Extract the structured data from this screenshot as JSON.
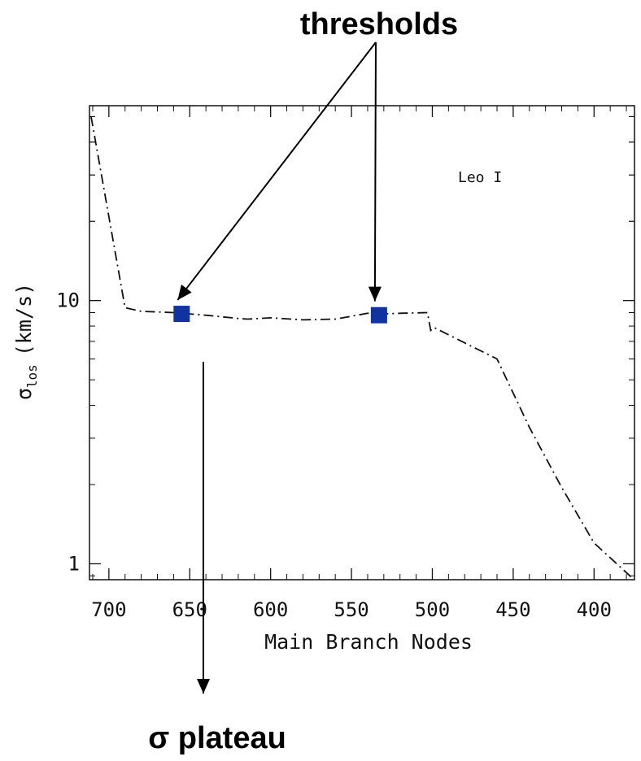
{
  "annotations": {
    "top_label": "thresholds",
    "bottom_label": "σ plateau"
  },
  "chart_data": {
    "type": "line",
    "xlabel": "Main Branch Nodes",
    "ylabel_main": "σ",
    "ylabel_sub": "los",
    "ylabel_units": "(km/s)",
    "xlim": [
      712,
      375
    ],
    "x_reversed": true,
    "ylim": [
      0.87,
      55
    ],
    "y_scale": "log",
    "x_ticks": [
      700,
      650,
      600,
      550,
      500,
      450,
      400
    ],
    "x_tick_labels": [
      "700",
      "650",
      "600",
      "550",
      "500",
      "450",
      "400"
    ],
    "y_ticks": [
      1,
      10
    ],
    "y_tick_labels": [
      "1",
      "10"
    ],
    "legend_text": "Leo I",
    "line_style": "dash-dot",
    "line_color": "#111111",
    "marker_color": "#1133a0",
    "series": [
      {
        "x": [
          711,
          690,
          680,
          660,
          640,
          620,
          614,
          600,
          580,
          560,
          540,
          530,
          520,
          503,
          501,
          499,
          460,
          440,
          420,
          400,
          377
        ],
        "y": [
          50,
          9.4,
          9.1,
          9.0,
          8.8,
          8.55,
          8.5,
          8.6,
          8.45,
          8.5,
          8.95,
          8.9,
          8.95,
          9.0,
          7.7,
          7.9,
          6.0,
          3.3,
          1.95,
          1.2,
          0.89
        ]
      }
    ],
    "threshold_points": [
      {
        "x": 655,
        "y": 8.9
      },
      {
        "x": 533,
        "y": 8.8
      }
    ]
  }
}
